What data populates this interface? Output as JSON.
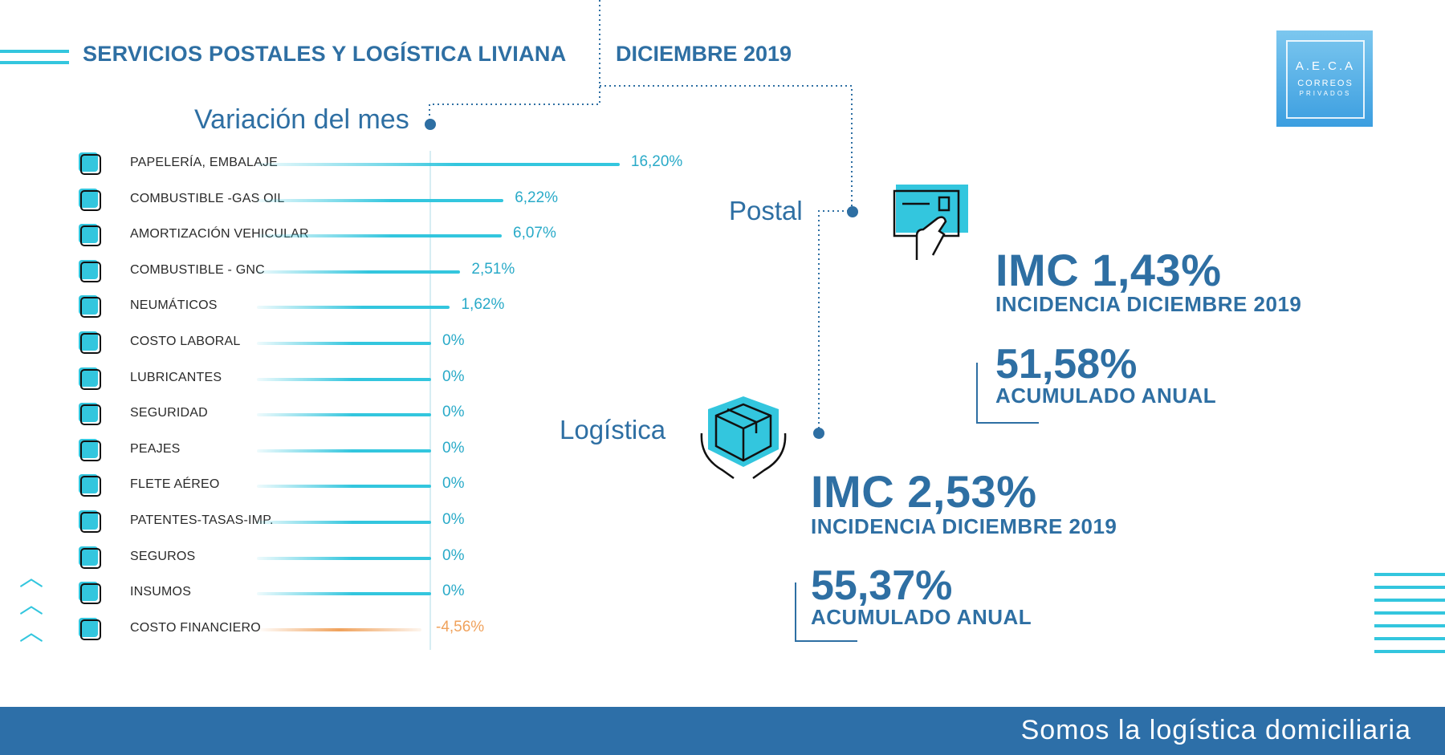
{
  "header": {
    "title": "SERVICIOS POSTALES Y LOGÍSTICA LIVIANA",
    "date": "DICIEMBRE 2019"
  },
  "logo": {
    "line1": "A.E.C.A",
    "line2": "CORREOS",
    "line3": "PRIVADOS"
  },
  "section_title": "Variación del mes",
  "postal": {
    "label": "Postal",
    "imc": "IMC 1,43%",
    "incidencia": "INCIDENCIA DICIEMBRE 2019",
    "acumulado_value": "51,58%",
    "acumulado_label": "ACUMULADO ANUAL"
  },
  "logistica": {
    "label": "Logística",
    "imc": "IMC 2,53%",
    "incidencia": "INCIDENCIA DICIEMBRE 2019",
    "acumulado_value": "55,37%",
    "acumulado_label": "ACUMULADO ANUAL"
  },
  "footer": {
    "text": "Somos la logística domiciliaria"
  },
  "colors": {
    "primary": "#2e6fa3",
    "accent": "#33c6de",
    "negative": "#f0a25c",
    "footer": "#2d6fa8"
  },
  "chart_data": {
    "type": "bar",
    "orientation": "horizontal",
    "title": "Variación del mes",
    "categories": [
      "PAPELERÍA, EMBALAJE",
      "COMBUSTIBLE -GAS OIL",
      "AMORTIZACIÓN VEHICULAR",
      "COMBUSTIBLE - GNC",
      "NEUMÁTICOS",
      "COSTO LABORAL",
      "LUBRICANTES",
      "SEGURIDAD",
      "PEAJES",
      "FLETE AÉREO",
      "PATENTES-TASAS-IMP.",
      "SEGUROS",
      "INSUMOS",
      "COSTO FINANCIERO"
    ],
    "values": [
      16.2,
      6.22,
      6.07,
      2.51,
      1.62,
      0,
      0,
      0,
      0,
      0,
      0,
      0,
      0,
      -4.56
    ],
    "labels": [
      "16,20%",
      "6,22%",
      "6,07%",
      "2,51%",
      "1,62%",
      "0%",
      "0%",
      "0%",
      "0%",
      "0%",
      "0%",
      "0%",
      "0%",
      "-4,56%"
    ],
    "icons": [
      "box-icon",
      "fuel-pump-icon",
      "truck-icon",
      "gas-cylinder-icon",
      "tire-icon",
      "coins-icon",
      "oil-can-icon",
      "guard-icon",
      "toll-icon",
      "air-freight-icon",
      "tax-icon",
      "insurance-box-icon",
      "clipboard-icon",
      "pie-icon"
    ]
  }
}
